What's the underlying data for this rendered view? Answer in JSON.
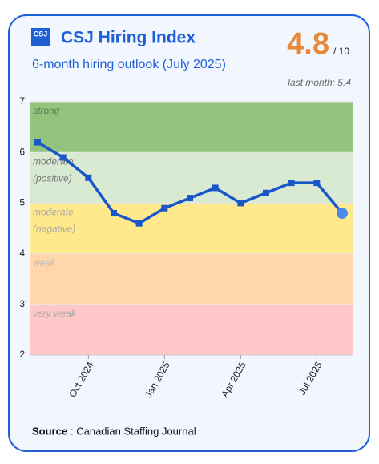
{
  "header": {
    "logo": "CSJ",
    "title": "CSJ Hiring Index",
    "subtitle": "6-month hiring outlook (July 2025)",
    "score": 4.8,
    "score_max_label": "/ 10",
    "last_month_label": "last month: 5.4"
  },
  "chart_data": {
    "type": "line",
    "categories": [
      null,
      null,
      "Oct 2024",
      null,
      null,
      "Jan 2025",
      null,
      null,
      "Apr 2025",
      null,
      null,
      "Jul 2025",
      null
    ],
    "series": [
      {
        "color": "#1a56c8",
        "values": [
          6.2,
          5.9,
          5.5,
          4.8,
          4.6,
          4.9,
          5.1,
          5.3,
          5.0,
          5.2,
          5.4,
          5.4,
          4.8
        ]
      }
    ],
    "highlight_color": "#4d8af0",
    "ylim": [
      2,
      7
    ],
    "yticks": [
      2,
      3,
      4,
      5,
      6,
      7
    ],
    "bands": [
      {
        "from": 6,
        "to": 7,
        "label": [
          "strong"
        ],
        "color": "#93c47d",
        "text_color": "#5a7a50"
      },
      {
        "from": 5,
        "to": 6,
        "label": [
          "moderate",
          "(positive)"
        ],
        "color": "#d9ead3",
        "text_color": "#777777"
      },
      {
        "from": 4,
        "to": 5,
        "label": [
          "moderate",
          "(negative)"
        ],
        "color": "#ffe98a",
        "text_color": "#aaaaaa"
      },
      {
        "from": 3,
        "to": 4,
        "label": [
          "weak"
        ],
        "color": "#ffd7aa",
        "text_color": "#bbbbbb"
      },
      {
        "from": 2,
        "to": 3,
        "label": [
          "very weak"
        ],
        "color": "#ffc7c7",
        "text_color": "#aaaaaa"
      }
    ]
  },
  "footer": {
    "source_label": "Source",
    "source": ": Canadian Staffing Journal"
  }
}
